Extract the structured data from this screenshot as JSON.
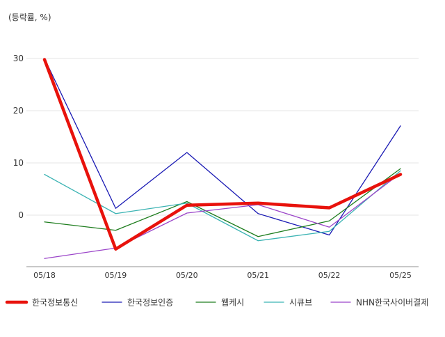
{
  "chart_data": {
    "type": "line",
    "unit_label": "(등락률, %)",
    "categories": [
      "05/18",
      "05/19",
      "05/20",
      "05/21",
      "05/22",
      "05/25"
    ],
    "ylim": [
      -10,
      35
    ],
    "yticks": [
      0,
      10,
      20,
      30
    ],
    "grid": true,
    "legend_position": "bottom",
    "series": [
      {
        "name": "한국정보통신",
        "color": "#e8120c",
        "values": [
          29.8,
          -6.5,
          1.9,
          2.3,
          1.4,
          7.8
        ]
      },
      {
        "name": "한국정보인증",
        "color": "#1a1ab4",
        "values": [
          30.0,
          1.3,
          12.0,
          0.3,
          -3.8,
          17.1
        ]
      },
      {
        "name": "웹케시",
        "color": "#1e7d1e",
        "values": [
          -1.3,
          -2.9,
          2.6,
          -4.1,
          -1.1,
          8.9
        ]
      },
      {
        "name": "시큐브",
        "color": "#3bb3b3",
        "values": [
          7.8,
          0.3,
          2.3,
          -4.9,
          -3.1,
          8.5
        ]
      },
      {
        "name": "NHN한국사이버결제",
        "color": "#9b45c9",
        "values": [
          -8.3,
          -6.3,
          0.4,
          2.0,
          -2.3,
          8.0
        ]
      }
    ]
  }
}
